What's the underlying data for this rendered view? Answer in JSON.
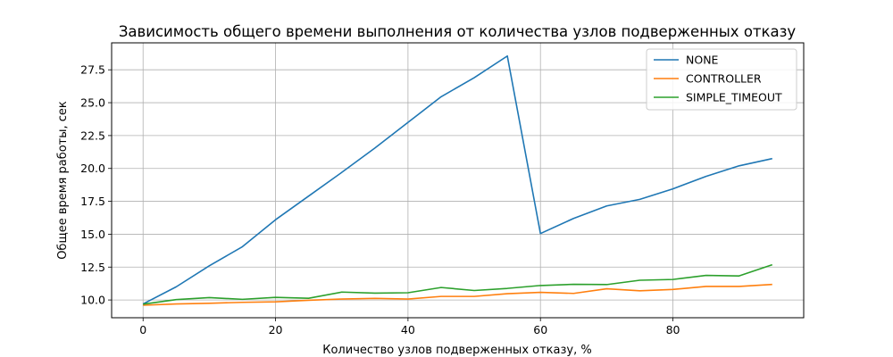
{
  "chart_data": {
    "type": "line",
    "title": "Зависимость общего времени выполнения от количества узлов подверженных отказу",
    "xlabel": "Количество узлов подверженных отказу, %",
    "ylabel": "Общее время работы, сек",
    "xlim": [
      -4.75,
      99.75
    ],
    "ylim": [
      8.65,
      29.55
    ],
    "xticks": [
      0,
      20,
      40,
      60,
      80
    ],
    "yticks": [
      10.0,
      12.5,
      15.0,
      17.5,
      20.0,
      22.5,
      25.0,
      27.5
    ],
    "grid": true,
    "legend_position": "upper right",
    "x": [
      0,
      5,
      10,
      15,
      20,
      25,
      30,
      35,
      40,
      45,
      50,
      55,
      60,
      65,
      70,
      75,
      80,
      85,
      90,
      95
    ],
    "series": [
      {
        "name": "NONE",
        "color": "#1f77b4",
        "values": [
          9.7,
          11.0,
          12.6,
          14.05,
          16.1,
          17.9,
          19.7,
          21.55,
          23.5,
          25.45,
          26.9,
          28.55,
          15.05,
          16.2,
          17.15,
          17.65,
          18.45,
          19.4,
          20.2,
          20.75
        ]
      },
      {
        "name": "CONTROLLER",
        "color": "#ff7f0e",
        "values": [
          9.6,
          9.7,
          9.75,
          9.82,
          9.86,
          9.98,
          10.07,
          10.12,
          10.07,
          10.27,
          10.27,
          10.48,
          10.58,
          10.5,
          10.85,
          10.7,
          10.8,
          11.03,
          11.03,
          11.18
        ]
      },
      {
        "name": "SIMPLE_TIMEOUT",
        "color": "#2ca02c",
        "values": [
          9.68,
          10.03,
          10.18,
          10.05,
          10.2,
          10.13,
          10.6,
          10.52,
          10.55,
          10.95,
          10.72,
          10.88,
          11.1,
          11.19,
          11.17,
          11.5,
          11.56,
          11.87,
          11.83,
          12.68
        ]
      }
    ]
  }
}
